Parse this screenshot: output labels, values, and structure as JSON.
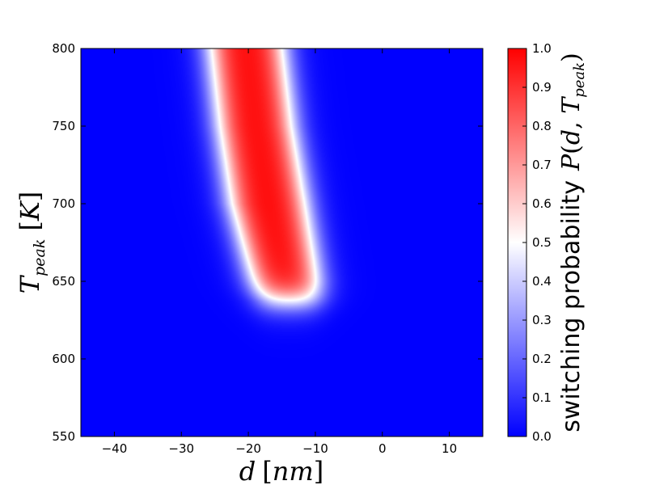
{
  "chart_data": {
    "type": "heatmap",
    "x_ticks": [
      -40,
      -30,
      -20,
      -10,
      0,
      10
    ],
    "y_ticks": [
      550,
      600,
      650,
      700,
      750,
      800
    ],
    "xlim": [
      -45,
      15
    ],
    "ylim": [
      550,
      800
    ],
    "xlabel": {
      "var": "d",
      "unit": "nm"
    },
    "ylabel": {
      "var": "T",
      "sub": "peak",
      "unit": "K"
    },
    "colorbar": {
      "label_text": "switching probability",
      "label_math": {
        "func": "P",
        "arg1": "d",
        "var": "T",
        "sub": "peak"
      },
      "ticks": [
        "0.0",
        "0.1",
        "0.2",
        "0.3",
        "0.4",
        "0.5",
        "0.6",
        "0.7",
        "0.8",
        "0.9",
        "1.0"
      ],
      "range": [
        0,
        1
      ],
      "colormap": "bwr",
      "colors": {
        "low": "#0000ff",
        "mid": "#ffffff",
        "high": "#ff0000"
      }
    },
    "region_p1": {
      "T_threshold_K": 637,
      "left_edge_d_at_T": [
        [
          800,
          -25.5
        ],
        [
          750,
          -24.2
        ],
        [
          700,
          -22.4
        ],
        [
          650,
          -19.2
        ],
        [
          637,
          -18.3
        ]
      ],
      "right_edge_d_at_T": [
        [
          800,
          -15.0
        ],
        [
          750,
          -13.6
        ],
        [
          700,
          -11.6
        ],
        [
          650,
          -9.7
        ],
        [
          637,
          -9.5
        ]
      ],
      "transition_width_nm": 1.3
    }
  }
}
